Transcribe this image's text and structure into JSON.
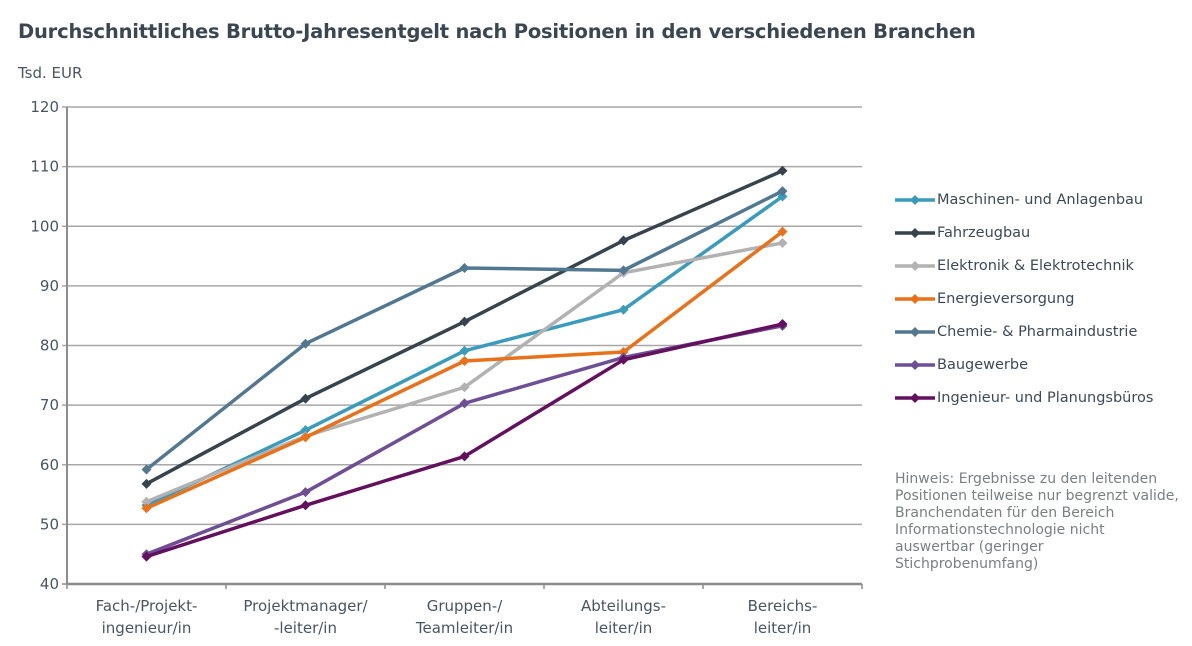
{
  "chart_data": {
    "type": "line",
    "title": "Durchschnittliches Brutto-Jahresentgelt nach Positionen in den verschiedenen Branchen",
    "ylabel": "Tsd. EUR",
    "xlabel": "",
    "ylim": [
      40,
      120
    ],
    "yticks": [
      40,
      50,
      60,
      70,
      80,
      90,
      100,
      110,
      120
    ],
    "grid": true,
    "legend_position": "right",
    "categories": [
      [
        "Fach-/Projekt-",
        "ingenieur/in"
      ],
      [
        "Projektmanager/",
        "-leiter/in"
      ],
      [
        "Gruppen-/",
        "Teamleiter/in"
      ],
      [
        "Abteilungs-",
        "leiter/in"
      ],
      [
        "Bereichs-",
        "leiter/in"
      ]
    ],
    "series": [
      {
        "name": "Maschinen- und Anlagenbau",
        "color": "#3a9bbd",
        "values": [
          53.2,
          65.8,
          79.1,
          86.0,
          105.0
        ]
      },
      {
        "name": "Fahrzeugbau",
        "color": "#37444d",
        "values": [
          56.8,
          71.1,
          84.0,
          97.6,
          109.3
        ]
      },
      {
        "name": "Elektronik & Elektrotechnik",
        "color": "#b2b2b2",
        "values": [
          53.8,
          64.8,
          73.0,
          92.2,
          97.2
        ]
      },
      {
        "name": "Energieversorgung",
        "color": "#e8711a",
        "values": [
          52.7,
          64.6,
          77.4,
          78.9,
          99.1
        ]
      },
      {
        "name": "Chemie- & Pharmaindustrie",
        "color": "#527891",
        "values": [
          59.2,
          80.3,
          93.0,
          92.6,
          105.9
        ]
      },
      {
        "name": "Baugewerbe",
        "color": "#6e4f96",
        "values": [
          45.0,
          55.4,
          70.3,
          78.0,
          83.3
        ]
      },
      {
        "name": "Ingenieur- und Planungsbüros",
        "color": "#63105f",
        "values": [
          44.6,
          53.2,
          61.4,
          77.6,
          83.6
        ]
      }
    ],
    "note": "Hinweis: Ergebnisse zu den leitenden Positionen teilweise nur begrenzt valide, Branchendaten für den Bereich Informationstechnologie nicht auswertbar (geringer Stichprobenumfang)"
  }
}
